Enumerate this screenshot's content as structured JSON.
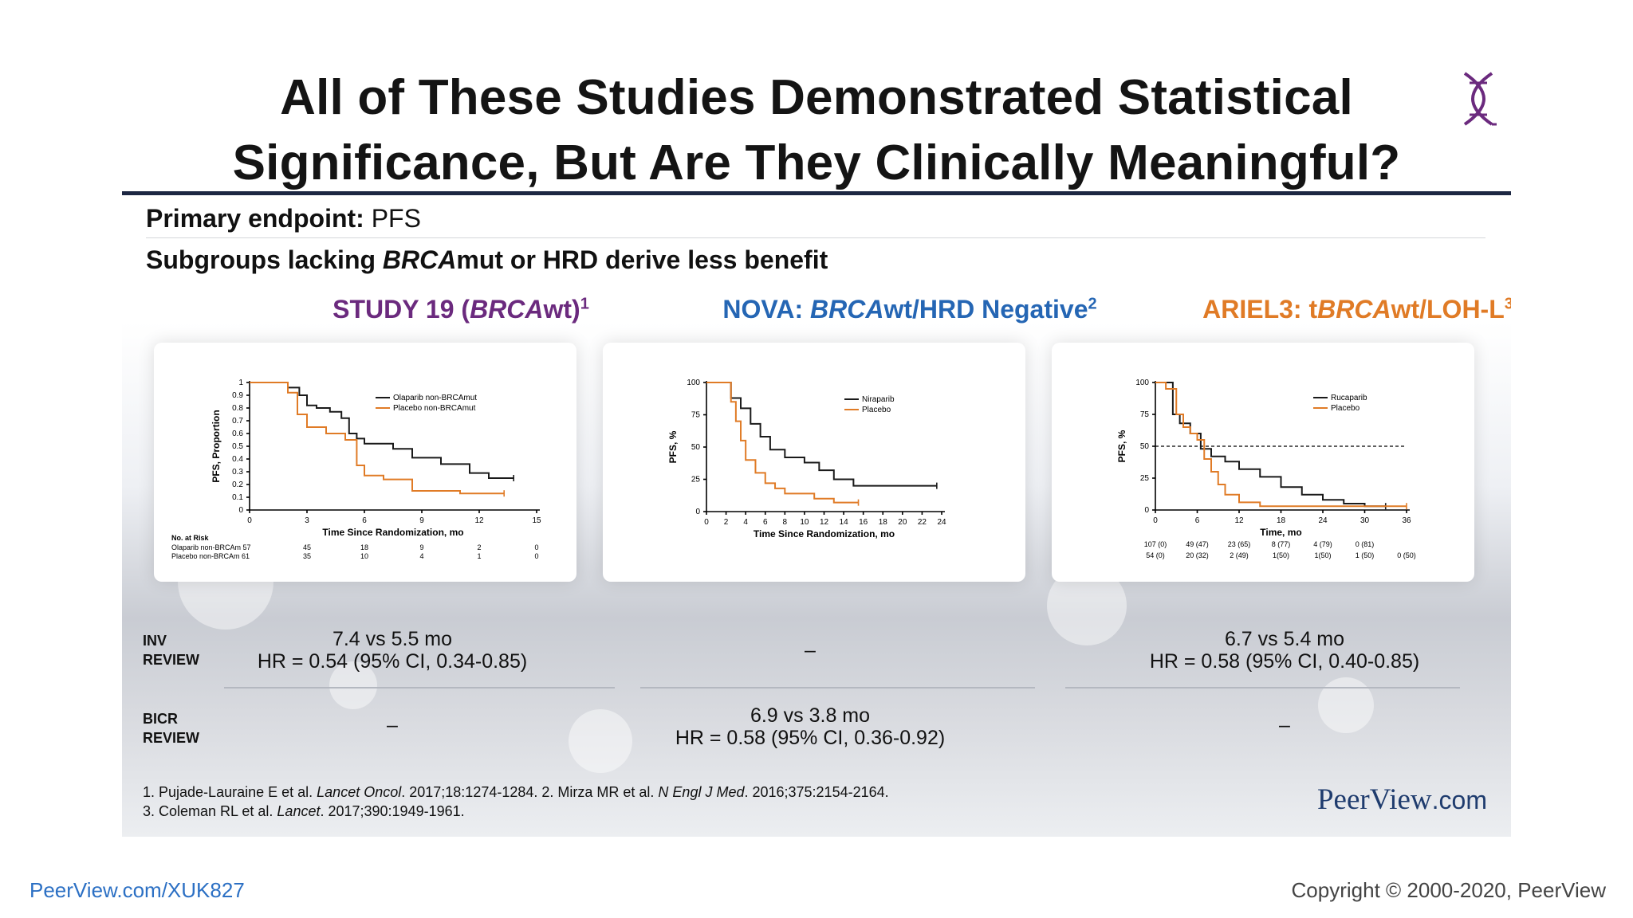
{
  "title": "All of These Studies Demonstrated Statistical\nSignificance, But Are They Clinically Meaningful?",
  "primary_endpoint": {
    "label": "Primary endpoint:",
    "value": " PFS"
  },
  "subgroup_text": {
    "pre": "Subgroups lacking ",
    "italic": "BRCA",
    "post": "mut or HRD derive less benefit"
  },
  "studies": [
    {
      "pre": "STUDY 19 (",
      "italic": "BRCA",
      "post": "wt)",
      "sup": "1",
      "color": "#6b2a7e"
    },
    {
      "pre": "NOVA: ",
      "italic": "BRCA",
      "post": "wt/HRD Negative",
      "sup": "2",
      "color": "#2566b4"
    },
    {
      "pre": "ARIEL3: t",
      "italic": "BRCA",
      "post": "wt/LOH-L",
      "sup": "3",
      "color": "#e07b26"
    }
  ],
  "review_rows": [
    {
      "label": "INV\nREVIEW",
      "cells": [
        "7.4 vs 5.5 mo\nHR = 0.54 (95% CI, 0.34-0.85)",
        "–",
        "6.7 vs 5.4 mo\nHR = 0.58 (95% CI, 0.40-0.85)"
      ]
    },
    {
      "label": "BICR\nREVIEW",
      "cells": [
        "–",
        "6.9 vs 3.8 mo\nHR = 0.58 (95% CI, 0.36-0.92)",
        "–"
      ]
    }
  ],
  "footnotes": {
    "line1": [
      "1. Pujade-Lauraine E et al. ",
      "Lancet Oncol",
      ". 2017;18:1274-1284. 2. Mirza MR et al. ",
      "N Engl J Med",
      ". 2016;375:2154-2164."
    ],
    "line2": [
      "3. Coleman RL et al. ",
      "Lancet",
      ". 2017;390:1949-1961."
    ]
  },
  "brand": {
    "name": "PeerView",
    "suffix": ".com"
  },
  "bottom_url": "PeerView.com/XUK827",
  "copyright": "Copyright © 2000-2020, PeerView",
  "colors": {
    "title_rule": "#1c2742",
    "curve_treatment": "#1a1a1a",
    "curve_placebo": "#e07b26"
  },
  "chart_data": [
    {
      "type": "line",
      "title": "STUDY 19 (BRCAwt)",
      "xlabel": "Time Since Randomization, mo",
      "ylabel": "PFS, Proportion",
      "xlim": [
        0,
        15
      ],
      "ylim": [
        0,
        1
      ],
      "x_ticks": [
        0,
        3,
        6,
        9,
        12,
        15
      ],
      "y_ticks": [
        0,
        0.1,
        0.2,
        0.3,
        0.4,
        0.5,
        0.6,
        0.7,
        0.8,
        0.9,
        1
      ],
      "legend": [
        "Olaparib non-BRCAmut",
        "Placebo non-BRCAmut"
      ],
      "series": [
        {
          "name": "Olaparib non-BRCAmut",
          "x": [
            0,
            1.2,
            2.0,
            2.6,
            3.0,
            3.5,
            4.2,
            4.8,
            5.2,
            5.6,
            6.0,
            7.5,
            8.5,
            10.0,
            11.5,
            12.5,
            13.8
          ],
          "y": [
            1,
            1,
            0.96,
            0.9,
            0.82,
            0.8,
            0.77,
            0.72,
            0.6,
            0.56,
            0.52,
            0.48,
            0.41,
            0.36,
            0.29,
            0.25,
            0.25
          ]
        },
        {
          "name": "Placebo non-BRCAmut",
          "x": [
            0,
            1.0,
            2.0,
            2.5,
            3.0,
            4.0,
            5.0,
            5.6,
            6.0,
            7.0,
            8.5,
            10.0,
            11.0,
            12.0,
            13.3
          ],
          "y": [
            1,
            1,
            0.92,
            0.75,
            0.65,
            0.6,
            0.55,
            0.35,
            0.27,
            0.24,
            0.15,
            0.15,
            0.13,
            0.13,
            0.13
          ]
        }
      ],
      "risk_table": {
        "header": "No. at Risk",
        "rows": [
          {
            "label": "Olaparib non-BRCAm",
            "n": "57",
            "values": [
              "45",
              "18",
              "9",
              "2",
              "0"
            ]
          },
          {
            "label": "Placebo non-BRCAm",
            "n": "61",
            "values": [
              "35",
              "10",
              "4",
              "1",
              "0"
            ]
          }
        ]
      }
    },
    {
      "type": "line",
      "title": "NOVA: BRCAwt/HRD Negative",
      "xlabel": "Time Since Randomization, mo",
      "ylabel": "PFS, %",
      "xlim": [
        0,
        24
      ],
      "ylim": [
        0,
        100
      ],
      "x_ticks": [
        0,
        2,
        4,
        6,
        8,
        10,
        12,
        14,
        16,
        18,
        20,
        22,
        24
      ],
      "y_ticks": [
        0,
        25,
        50,
        75,
        100
      ],
      "legend": [
        "Niraparib",
        "Placebo"
      ],
      "series": [
        {
          "name": "Niraparib",
          "x": [
            0,
            1.5,
            2.5,
            3.5,
            4.5,
            5.5,
            6.5,
            8.0,
            10.0,
            11.5,
            13.0,
            15.0,
            18.0,
            23.5
          ],
          "y": [
            100,
            100,
            88,
            80,
            68,
            58,
            48,
            42,
            38,
            32,
            25,
            20,
            20,
            20
          ]
        },
        {
          "name": "Placebo",
          "x": [
            0,
            1.5,
            2.5,
            3.0,
            3.5,
            4.0,
            5.0,
            6.0,
            7.0,
            8.0,
            11.0,
            13.0,
            15.5
          ],
          "y": [
            100,
            100,
            85,
            70,
            55,
            40,
            30,
            22,
            18,
            14,
            10,
            7,
            7
          ]
        }
      ]
    },
    {
      "type": "line",
      "title": "ARIEL3: tBRCAwt/LOH-L",
      "xlabel": "Time, mo",
      "ylabel": "PFS, %",
      "xlim": [
        0,
        36
      ],
      "ylim": [
        0,
        100
      ],
      "x_ticks": [
        0,
        6,
        12,
        18,
        24,
        30,
        36
      ],
      "y_ticks": [
        0,
        25,
        50,
        75,
        100
      ],
      "legend": [
        "Rucaparib",
        "Placebo"
      ],
      "reference_line": 50,
      "series": [
        {
          "name": "Rucaparib",
          "x": [
            0,
            1.5,
            2.5,
            3.5,
            5.0,
            6.5,
            8.0,
            10.0,
            12.0,
            15.0,
            18.0,
            21.0,
            24.0,
            27.0,
            30.0,
            33.0
          ],
          "y": [
            100,
            100,
            75,
            68,
            60,
            48,
            42,
            38,
            32,
            26,
            18,
            12,
            8,
            5,
            3,
            3
          ]
        },
        {
          "name": "Placebo",
          "x": [
            0,
            1.5,
            3.0,
            4.0,
            5.0,
            6.0,
            7.0,
            8.0,
            9.0,
            10.0,
            12.0,
            15.0,
            36.0
          ],
          "y": [
            100,
            95,
            75,
            65,
            60,
            55,
            40,
            30,
            20,
            12,
            6,
            3,
            3
          ]
        }
      ],
      "risk_table": {
        "rows": [
          {
            "values": [
              "107 (0)",
              "49 (47)",
              "23 (65)",
              "8 (77)",
              "4 (79)",
              "0 (81)",
              ""
            ]
          },
          {
            "values": [
              "54 (0)",
              "20 (32)",
              "2 (49)",
              "1(50)",
              "1(50)",
              "1 (50)",
              "0 (50)"
            ]
          }
        ]
      }
    }
  ]
}
